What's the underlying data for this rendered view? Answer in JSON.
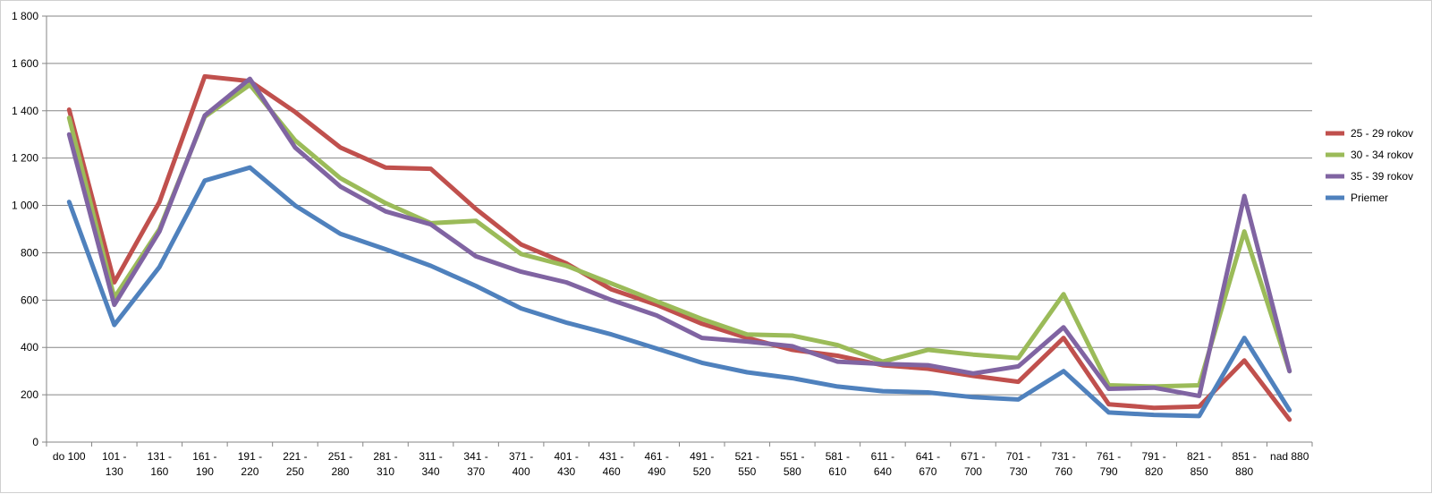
{
  "chart_data": {
    "type": "line",
    "title": "",
    "xlabel": "",
    "ylabel": "",
    "categories": [
      [
        "do 100"
      ],
      [
        "101 -",
        "130"
      ],
      [
        "131 -",
        "160"
      ],
      [
        "161 -",
        "190"
      ],
      [
        "191 -",
        "220"
      ],
      [
        "221 -",
        "250"
      ],
      [
        "251 -",
        "280"
      ],
      [
        "281 -",
        "310"
      ],
      [
        "311 -",
        "340"
      ],
      [
        "341 -",
        "370"
      ],
      [
        "371 -",
        "400"
      ],
      [
        "401 -",
        "430"
      ],
      [
        "431 -",
        "460"
      ],
      [
        "461 -",
        "490"
      ],
      [
        "491 -",
        "520"
      ],
      [
        "521 -",
        "550"
      ],
      [
        "551 -",
        "580"
      ],
      [
        "581 -",
        "610"
      ],
      [
        "611 -",
        "640"
      ],
      [
        "641 -",
        "670"
      ],
      [
        "671 -",
        "700"
      ],
      [
        "701 -",
        "730"
      ],
      [
        "731 -",
        "760"
      ],
      [
        "761 -",
        "790"
      ],
      [
        "791 -",
        "820"
      ],
      [
        "821 -",
        "850"
      ],
      [
        "851 -",
        "880"
      ],
      [
        "nad 880"
      ]
    ],
    "ylim": [
      0,
      1800
    ],
    "yticks": [
      0,
      200,
      400,
      600,
      800,
      1000,
      1200,
      1400,
      1600,
      1800
    ],
    "ytick_labels": [
      "0",
      "200",
      "400",
      "600",
      "800",
      "1 000",
      "1 200",
      "1 400",
      "1 600",
      "1 800"
    ],
    "grid": true,
    "legend_position": "right",
    "series": [
      {
        "name": "25 - 29 rokov",
        "color": "#c0504d",
        "values": [
          1405,
          675,
          1015,
          1545,
          1525,
          1395,
          1245,
          1160,
          1155,
          985,
          835,
          755,
          645,
          580,
          500,
          440,
          390,
          365,
          325,
          310,
          280,
          255,
          440,
          160,
          145,
          150,
          345,
          95
        ]
      },
      {
        "name": "30 - 34 rokov",
        "color": "#9bbb59",
        "values": [
          1370,
          610,
          900,
          1375,
          1510,
          1275,
          1115,
          1010,
          925,
          935,
          795,
          745,
          670,
          595,
          520,
          455,
          450,
          410,
          340,
          390,
          370,
          355,
          625,
          240,
          235,
          240,
          890,
          300
        ]
      },
      {
        "name": "35 - 39 rokov",
        "color": "#8064a2",
        "values": [
          1300,
          580,
          890,
          1380,
          1535,
          1245,
          1080,
          975,
          920,
          785,
          720,
          675,
          600,
          535,
          440,
          425,
          405,
          340,
          330,
          325,
          290,
          320,
          485,
          225,
          230,
          195,
          1040,
          300
        ]
      },
      {
        "name": "Priemer",
        "color": "#4f81bd",
        "values": [
          1015,
          495,
          740,
          1105,
          1160,
          1000,
          880,
          815,
          745,
          660,
          565,
          505,
          455,
          395,
          335,
          295,
          270,
          235,
          215,
          210,
          190,
          180,
          300,
          125,
          115,
          110,
          440,
          135
        ]
      }
    ]
  }
}
